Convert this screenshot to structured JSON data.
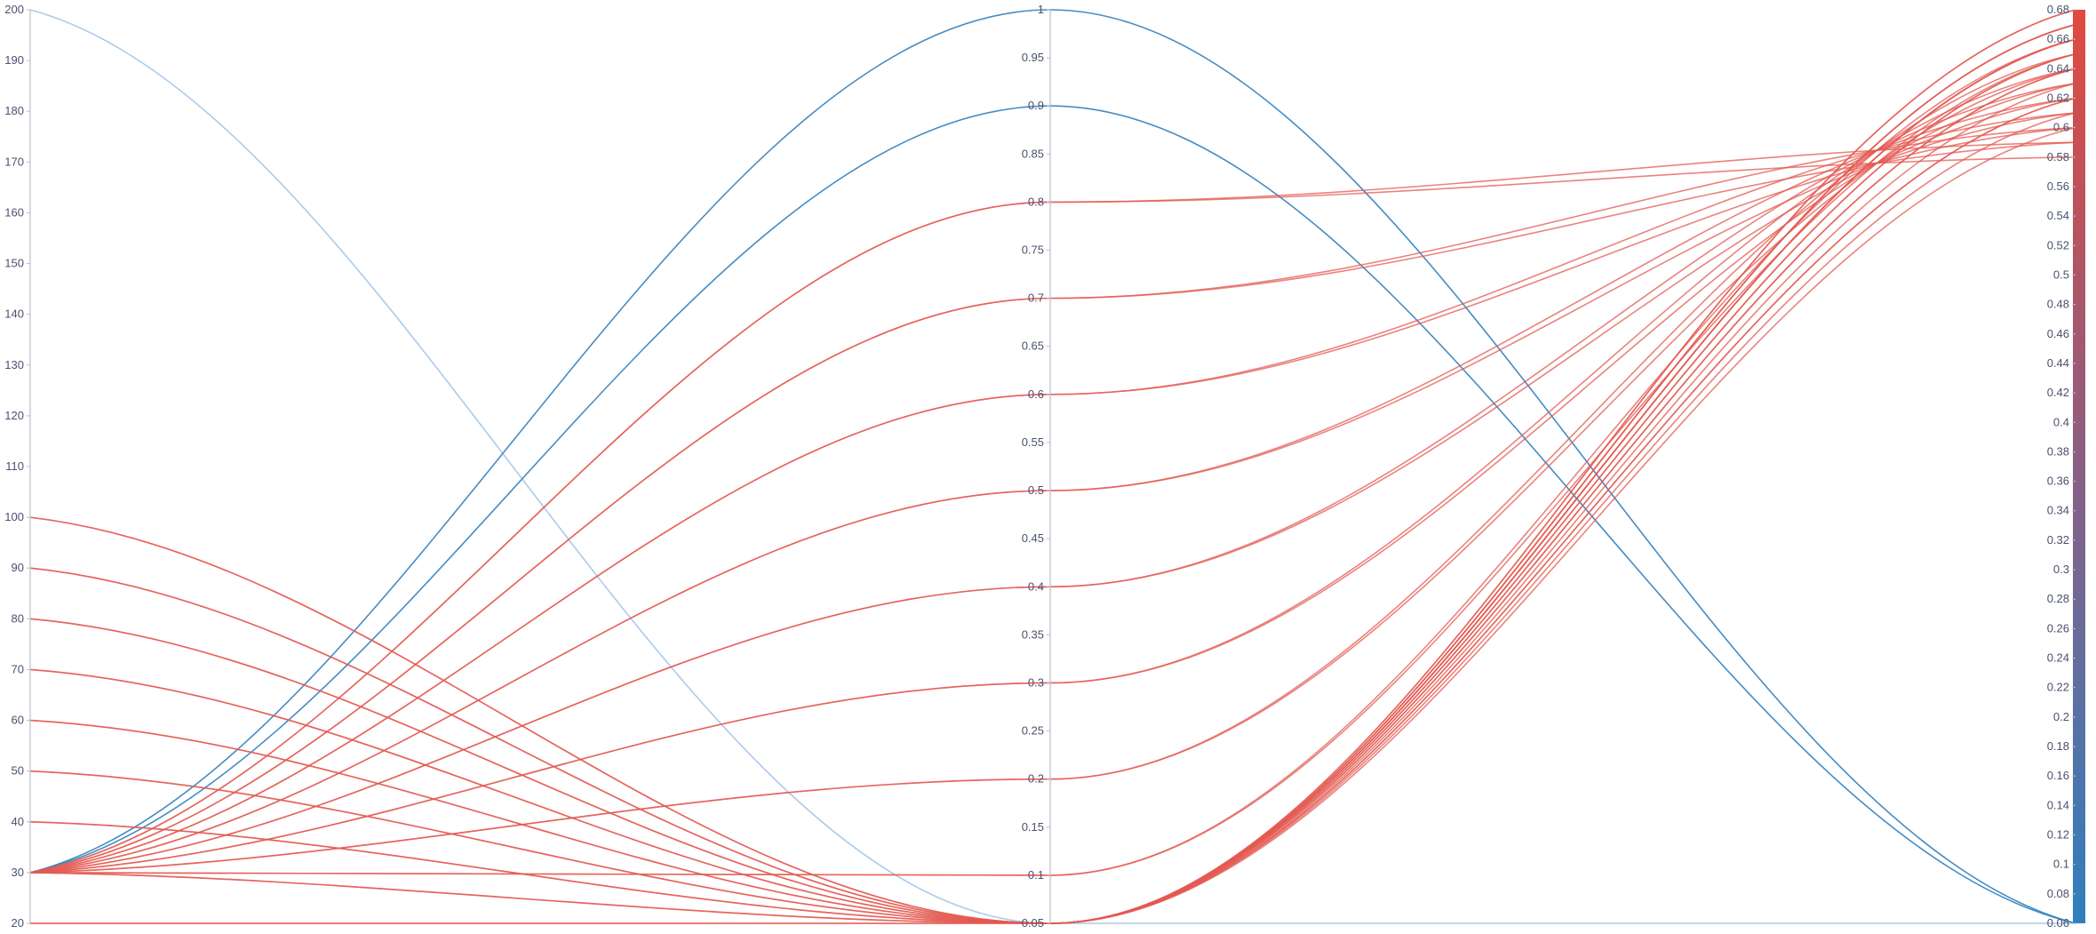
{
  "chart_data": {
    "type": "parallel-coordinates",
    "title": "",
    "axes": [
      {
        "id": "a1",
        "label": "",
        "range": [
          20,
          200
        ],
        "ticks": [
          "200",
          "190",
          "180",
          "170",
          "160",
          "150",
          "140",
          "130",
          "120",
          "110",
          "100",
          "90",
          "80",
          "70",
          "60",
          "50",
          "40",
          "30",
          "20"
        ],
        "label_side": "left"
      },
      {
        "id": "a2",
        "label": "",
        "range": [
          0.05,
          1
        ],
        "ticks": [
          "1",
          "0.95",
          "0.9",
          "0.85",
          "0.8",
          "0.75",
          "0.7",
          "0.65",
          "0.6",
          "0.55",
          "0.5",
          "0.45",
          "0.4",
          "0.35",
          "0.3",
          "0.25",
          "0.2",
          "0.15",
          "0.1",
          "0.05"
        ],
        "label_side": "left"
      },
      {
        "id": "a3",
        "label": "",
        "range": [
          0.06,
          0.68
        ],
        "ticks": [
          "0.68",
          "0.66",
          "0.64",
          "0.62",
          "0.6",
          "0.58",
          "0.56",
          "0.54",
          "0.52",
          "0.5",
          "0.48",
          "0.46",
          "0.44",
          "0.42",
          "0.4",
          "0.38",
          "0.36",
          "0.34",
          "0.32",
          "0.3",
          "0.28",
          "0.26",
          "0.24",
          "0.22",
          "0.2",
          "0.18",
          "0.16",
          "0.14",
          "0.12",
          "0.1",
          "0.08",
          "0.06"
        ],
        "label_side": "left",
        "colorbar": true
      }
    ],
    "color_scale": {
      "low": "#2f7fbf",
      "mid": "#8a5f83",
      "high": "#e04a3f",
      "domain": [
        0.06,
        0.68
      ]
    },
    "series": [
      {
        "values": [
          200,
          0.05,
          0.06
        ],
        "color": "#a8c8e8"
      },
      {
        "values": [
          30,
          1.0,
          0.06
        ],
        "color": "#3a86c2"
      },
      {
        "values": [
          30,
          0.9,
          0.06
        ],
        "color": "#3a86c2"
      },
      {
        "values": [
          30,
          0.8,
          0.59
        ],
        "color": "#e35a52"
      },
      {
        "values": [
          30,
          0.8,
          0.58
        ],
        "color": "#e35a52"
      },
      {
        "values": [
          30,
          0.7,
          0.6
        ],
        "color": "#e35a52"
      },
      {
        "values": [
          30,
          0.7,
          0.59
        ],
        "color": "#e35a52"
      },
      {
        "values": [
          30,
          0.6,
          0.61
        ],
        "color": "#e35a52"
      },
      {
        "values": [
          30,
          0.6,
          0.6
        ],
        "color": "#e35a52"
      },
      {
        "values": [
          30,
          0.5,
          0.62
        ],
        "color": "#e35a52"
      },
      {
        "values": [
          30,
          0.5,
          0.61
        ],
        "color": "#e35a52"
      },
      {
        "values": [
          30,
          0.4,
          0.63
        ],
        "color": "#e35a52"
      },
      {
        "values": [
          30,
          0.4,
          0.62
        ],
        "color": "#e35a52"
      },
      {
        "values": [
          30,
          0.3,
          0.64
        ],
        "color": "#e35a52"
      },
      {
        "values": [
          30,
          0.3,
          0.63
        ],
        "color": "#e35a52"
      },
      {
        "values": [
          30,
          0.2,
          0.65
        ],
        "color": "#e35a52"
      },
      {
        "values": [
          30,
          0.2,
          0.64
        ],
        "color": "#e35a52"
      },
      {
        "values": [
          30,
          0.1,
          0.66
        ],
        "color": "#e35a52"
      },
      {
        "values": [
          30,
          0.1,
          0.65
        ],
        "color": "#e35a52"
      },
      {
        "values": [
          100,
          0.05,
          0.66
        ],
        "color": "#e35a52"
      },
      {
        "values": [
          100,
          0.05,
          0.65
        ],
        "color": "#e35a52"
      },
      {
        "values": [
          90,
          0.05,
          0.67
        ],
        "color": "#e35a52"
      },
      {
        "values": [
          90,
          0.05,
          0.66
        ],
        "color": "#e35a52"
      },
      {
        "values": [
          80,
          0.05,
          0.68
        ],
        "color": "#e35a52"
      },
      {
        "values": [
          80,
          0.05,
          0.67
        ],
        "color": "#e35a52"
      },
      {
        "values": [
          70,
          0.05,
          0.64
        ],
        "color": "#e35a52"
      },
      {
        "values": [
          70,
          0.05,
          0.63
        ],
        "color": "#e35a52"
      },
      {
        "values": [
          60,
          0.05,
          0.65
        ],
        "color": "#e35a52"
      },
      {
        "values": [
          60,
          0.05,
          0.62
        ],
        "color": "#e35a52"
      },
      {
        "values": [
          50,
          0.05,
          0.66
        ],
        "color": "#e35a52"
      },
      {
        "values": [
          50,
          0.05,
          0.61
        ],
        "color": "#e35a52"
      },
      {
        "values": [
          40,
          0.05,
          0.67
        ],
        "color": "#e35a52"
      },
      {
        "values": [
          40,
          0.05,
          0.6
        ],
        "color": "#e35a52"
      },
      {
        "values": [
          30,
          0.05,
          0.68
        ],
        "color": "#e35a52"
      },
      {
        "values": [
          30,
          0.05,
          0.64
        ],
        "color": "#e35a52"
      },
      {
        "values": [
          20,
          0.05,
          0.66
        ],
        "color": "#e35a52"
      },
      {
        "values": [
          20,
          0.05,
          0.62
        ],
        "color": "#e35a52"
      }
    ]
  }
}
